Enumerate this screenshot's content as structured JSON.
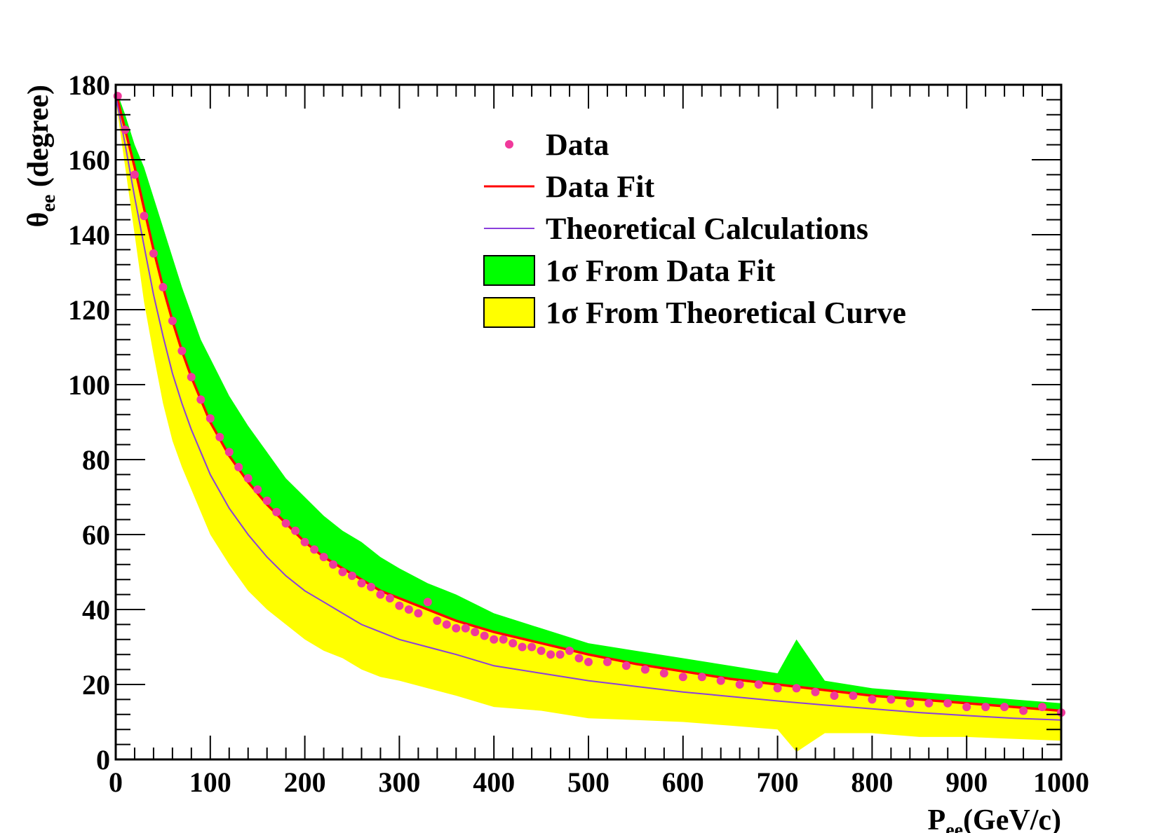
{
  "chart_data": {
    "type": "scatter",
    "title": "",
    "xlabel_main": "P",
    "xlabel_sub": "ee",
    "xlabel_unit": "(GeV/c)",
    "ylabel_main": "θ",
    "ylabel_sub": "ee",
    "ylabel_unit": " (degree)",
    "xlim": [
      0,
      1000
    ],
    "ylim": [
      0,
      180
    ],
    "xticks": [
      0,
      100,
      200,
      300,
      400,
      500,
      600,
      700,
      800,
      900,
      1000
    ],
    "yticks": [
      0,
      20,
      40,
      60,
      80,
      100,
      120,
      140,
      160,
      180
    ],
    "grid": false,
    "legend_position": "top-right",
    "legend": [
      {
        "label": "Data",
        "kind": "marker",
        "color": "#f0399b"
      },
      {
        "label": "Data Fit",
        "kind": "line",
        "color": "#ff0000"
      },
      {
        "label": "Theoretical Calculations",
        "kind": "line",
        "color": "#8a3fdc"
      },
      {
        "label": "1σ From Data Fit",
        "kind": "box",
        "color": "#00ff00"
      },
      {
        "label": "1σ From Theoretical Curve",
        "kind": "box",
        "color": "#ffff00"
      }
    ],
    "series": [
      {
        "name": "Data",
        "type": "scatter",
        "color": "#f0399b",
        "x": [
          2,
          10,
          20,
          30,
          40,
          50,
          60,
          70,
          80,
          90,
          100,
          110,
          120,
          130,
          140,
          150,
          160,
          170,
          180,
          190,
          200,
          210,
          220,
          230,
          240,
          250,
          260,
          270,
          280,
          290,
          300,
          310,
          320,
          330,
          340,
          350,
          360,
          370,
          380,
          390,
          400,
          410,
          420,
          430,
          440,
          450,
          460,
          470,
          480,
          490,
          500,
          520,
          540,
          560,
          580,
          600,
          620,
          640,
          660,
          680,
          700,
          720,
          740,
          760,
          780,
          800,
          820,
          840,
          860,
          880,
          900,
          920,
          940,
          960,
          980,
          1000
        ],
        "y": [
          177,
          168,
          156,
          145,
          135,
          126,
          117,
          109,
          102,
          96,
          91,
          86,
          82,
          78,
          75,
          72,
          69,
          66,
          63,
          61,
          58,
          56,
          54,
          52,
          50,
          49,
          47,
          46,
          44,
          43,
          41,
          40,
          39,
          42,
          37,
          36,
          35,
          35,
          34,
          33,
          32,
          32,
          31,
          30,
          30,
          29,
          28,
          28,
          29,
          27,
          26,
          26,
          25,
          24,
          23,
          22,
          22,
          21,
          20,
          20,
          19,
          19,
          18,
          17,
          17,
          16,
          16,
          15,
          15,
          15,
          14,
          14,
          14,
          13,
          14,
          12.5
        ]
      },
      {
        "name": "Data Fit",
        "type": "line",
        "color": "#ff0000",
        "x": [
          0,
          10,
          20,
          30,
          40,
          50,
          60,
          70,
          80,
          90,
          100,
          120,
          140,
          160,
          180,
          200,
          220,
          240,
          260,
          280,
          300,
          330,
          360,
          400,
          450,
          500,
          550,
          600,
          650,
          700,
          750,
          800,
          850,
          900,
          950,
          1000
        ],
        "y": [
          178,
          168,
          158,
          147,
          136,
          126,
          117,
          109,
          102,
          96,
          90,
          81,
          74,
          68,
          63,
          58,
          54,
          51,
          48,
          45,
          43,
          40,
          37,
          34,
          31,
          28,
          25.5,
          23.5,
          21.5,
          20,
          18.5,
          17,
          16,
          15,
          14,
          13
        ]
      },
      {
        "name": "Theoretical Calculations",
        "type": "line",
        "color": "#8a3fdc",
        "x": [
          0,
          10,
          20,
          30,
          40,
          50,
          60,
          70,
          80,
          90,
          100,
          120,
          140,
          160,
          180,
          200,
          220,
          240,
          260,
          280,
          300,
          330,
          360,
          400,
          450,
          500,
          550,
          600,
          650,
          700,
          750,
          800,
          850,
          900,
          950,
          1000
        ],
        "y": [
          177,
          164,
          150,
          137,
          124,
          113,
          103,
          95,
          88,
          82,
          76,
          67,
          60,
          54,
          49,
          45,
          42,
          39,
          36,
          34,
          32,
          30,
          28,
          25,
          23,
          21,
          19.5,
          18,
          16.8,
          15.6,
          14.5,
          13.5,
          12.5,
          11.7,
          11,
          10.5
        ]
      },
      {
        "name": "1σ From Data Fit",
        "type": "area",
        "color": "#00ff00",
        "x": [
          0,
          10,
          20,
          30,
          40,
          50,
          60,
          70,
          80,
          90,
          100,
          120,
          140,
          160,
          180,
          200,
          220,
          240,
          260,
          280,
          300,
          330,
          360,
          400,
          450,
          500,
          550,
          600,
          650,
          700,
          720,
          750,
          800,
          850,
          900,
          950,
          1000
        ],
        "y_high": [
          179,
          172,
          164,
          158,
          150,
          142,
          134,
          126,
          119,
          112,
          107,
          97,
          89,
          82,
          75,
          70,
          65,
          61,
          58,
          54,
          51,
          47,
          44,
          39,
          35,
          31,
          29,
          27,
          25,
          23,
          32,
          21,
          19,
          18,
          17,
          16,
          15
        ],
        "y_low": [
          178,
          168,
          158,
          147,
          136,
          126,
          117,
          109,
          102,
          96,
          90,
          81,
          74,
          68,
          63,
          58,
          54,
          51,
          48,
          45,
          43,
          40,
          37,
          34,
          31,
          28,
          25.5,
          23.5,
          21.5,
          20,
          19.5,
          18.5,
          17,
          16,
          15,
          14,
          13
        ]
      },
      {
        "name": "1σ From Theoretical Curve",
        "type": "area",
        "color": "#ffff00",
        "x": [
          0,
          10,
          20,
          30,
          40,
          50,
          60,
          70,
          80,
          90,
          100,
          120,
          140,
          160,
          180,
          200,
          220,
          240,
          260,
          280,
          300,
          330,
          360,
          400,
          450,
          500,
          550,
          600,
          650,
          700,
          720,
          750,
          800,
          850,
          900,
          950,
          1000
        ],
        "y_high": [
          178,
          170,
          162,
          150,
          140,
          130,
          121,
          112,
          105,
          99,
          94,
          84,
          77,
          70,
          65,
          60,
          56,
          53,
          50,
          47,
          45,
          41,
          38,
          35,
          32,
          29,
          27,
          25,
          23,
          21,
          30,
          20,
          18,
          17,
          16,
          15,
          14
        ],
        "y_low": [
          176,
          158,
          140,
          122,
          108,
          95,
          85,
          78,
          72,
          66,
          60,
          52,
          45,
          40,
          36,
          32,
          29,
          27,
          24,
          22,
          21,
          19,
          17,
          14,
          13,
          11,
          10.5,
          10,
          9,
          8,
          2,
          7,
          7,
          6,
          6,
          5.5,
          5
        ]
      }
    ]
  }
}
